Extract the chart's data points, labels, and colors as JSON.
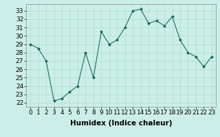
{
  "x": [
    0,
    1,
    2,
    3,
    4,
    5,
    6,
    7,
    8,
    9,
    10,
    11,
    12,
    13,
    14,
    15,
    16,
    17,
    18,
    19,
    20,
    21,
    22,
    23
  ],
  "y": [
    29.0,
    28.5,
    27.0,
    22.2,
    22.5,
    23.3,
    24.0,
    28.0,
    25.0,
    30.5,
    29.0,
    29.5,
    31.0,
    33.0,
    33.2,
    31.5,
    31.8,
    31.2,
    32.3,
    29.5,
    28.0,
    27.5,
    26.3,
    27.5
  ],
  "line_color": "#1a6b5a",
  "marker": "D",
  "marker_size": 2.0,
  "bg_color": "#cceee8",
  "grid_color": "#aaddcc",
  "xlabel": "Humidex (Indice chaleur)",
  "xlabel_fontsize": 7.5,
  "ylabel_ticks": [
    22,
    23,
    24,
    25,
    26,
    27,
    28,
    29,
    30,
    31,
    32,
    33
  ],
  "xlim": [
    -0.5,
    23.5
  ],
  "ylim": [
    21.5,
    33.8
  ],
  "tick_fontsize": 6.5
}
